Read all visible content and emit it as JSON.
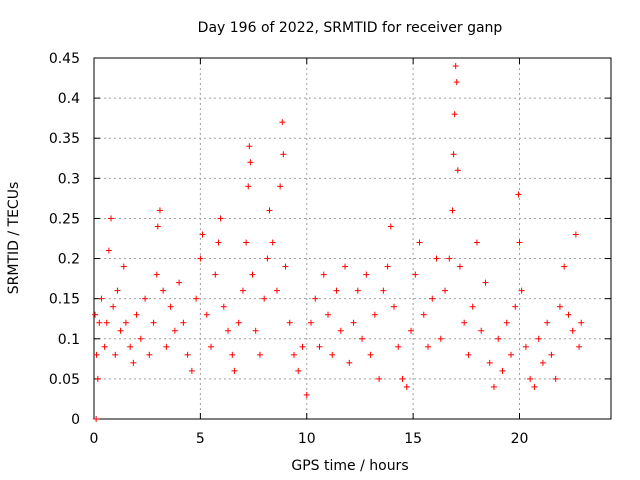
{
  "chart_data": {
    "type": "scatter",
    "title": "Day 196 of 2022, SRMTID for receiver ganp",
    "xlabel": "GPS time / hours",
    "ylabel": "SRMTID / TECUs",
    "xlim": [
      0,
      24.3
    ],
    "ylim": [
      0,
      0.45
    ],
    "xticks": [
      0,
      5,
      10,
      15,
      20
    ],
    "xtick_labels": [
      "0",
      "5",
      "10",
      "15",
      "20"
    ],
    "yticks": [
      0,
      0.05,
      0.1,
      0.15,
      0.2,
      0.25,
      0.3,
      0.35,
      0.4,
      0.45
    ],
    "ytick_labels": [
      "0",
      "0.05",
      "0.1",
      "0.15",
      "0.2",
      "0.25",
      "0.3",
      "0.35",
      "0.4",
      "0.45"
    ],
    "grid": true,
    "marker": "+",
    "color": "#ff0000",
    "series": [
      {
        "name": "SRMTID",
        "points": [
          [
            0.05,
            0.13
          ],
          [
            0.1,
            0.0
          ],
          [
            0.12,
            0.08
          ],
          [
            0.18,
            0.05
          ],
          [
            0.25,
            0.12
          ],
          [
            0.35,
            0.15
          ],
          [
            0.5,
            0.09
          ],
          [
            0.6,
            0.12
          ],
          [
            0.7,
            0.21
          ],
          [
            0.8,
            0.25
          ],
          [
            0.9,
            0.14
          ],
          [
            1.0,
            0.08
          ],
          [
            1.1,
            0.16
          ],
          [
            1.25,
            0.11
          ],
          [
            1.4,
            0.19
          ],
          [
            1.5,
            0.12
          ],
          [
            1.7,
            0.09
          ],
          [
            1.85,
            0.07
          ],
          [
            2.0,
            0.13
          ],
          [
            2.2,
            0.1
          ],
          [
            2.4,
            0.15
          ],
          [
            2.6,
            0.08
          ],
          [
            2.8,
            0.12
          ],
          [
            2.95,
            0.18
          ],
          [
            3.0,
            0.24
          ],
          [
            3.1,
            0.26
          ],
          [
            3.25,
            0.16
          ],
          [
            3.4,
            0.09
          ],
          [
            3.6,
            0.14
          ],
          [
            3.8,
            0.11
          ],
          [
            4.0,
            0.17
          ],
          [
            4.2,
            0.12
          ],
          [
            4.4,
            0.08
          ],
          [
            4.6,
            0.06
          ],
          [
            4.8,
            0.15
          ],
          [
            5.0,
            0.2
          ],
          [
            5.1,
            0.23
          ],
          [
            5.3,
            0.13
          ],
          [
            5.5,
            0.09
          ],
          [
            5.7,
            0.18
          ],
          [
            5.85,
            0.22
          ],
          [
            5.95,
            0.25
          ],
          [
            6.1,
            0.14
          ],
          [
            6.3,
            0.11
          ],
          [
            6.5,
            0.08
          ],
          [
            6.6,
            0.06
          ],
          [
            6.8,
            0.12
          ],
          [
            7.0,
            0.16
          ],
          [
            7.15,
            0.22
          ],
          [
            7.25,
            0.29
          ],
          [
            7.3,
            0.34
          ],
          [
            7.35,
            0.32
          ],
          [
            7.45,
            0.18
          ],
          [
            7.6,
            0.11
          ],
          [
            7.8,
            0.08
          ],
          [
            8.0,
            0.15
          ],
          [
            8.15,
            0.2
          ],
          [
            8.25,
            0.26
          ],
          [
            8.4,
            0.22
          ],
          [
            8.6,
            0.16
          ],
          [
            8.75,
            0.29
          ],
          [
            8.85,
            0.37
          ],
          [
            8.9,
            0.33
          ],
          [
            9.0,
            0.19
          ],
          [
            9.2,
            0.12
          ],
          [
            9.4,
            0.08
          ],
          [
            9.6,
            0.06
          ],
          [
            9.8,
            0.09
          ],
          [
            10.0,
            0.03
          ],
          [
            10.2,
            0.12
          ],
          [
            10.4,
            0.15
          ],
          [
            10.6,
            0.09
          ],
          [
            10.8,
            0.18
          ],
          [
            11.0,
            0.13
          ],
          [
            11.2,
            0.08
          ],
          [
            11.4,
            0.16
          ],
          [
            11.6,
            0.11
          ],
          [
            11.8,
            0.19
          ],
          [
            12.0,
            0.07
          ],
          [
            12.2,
            0.12
          ],
          [
            12.4,
            0.16
          ],
          [
            12.6,
            0.1
          ],
          [
            12.8,
            0.18
          ],
          [
            13.0,
            0.08
          ],
          [
            13.2,
            0.13
          ],
          [
            13.4,
            0.05
          ],
          [
            13.6,
            0.16
          ],
          [
            13.8,
            0.19
          ],
          [
            13.95,
            0.24
          ],
          [
            14.1,
            0.14
          ],
          [
            14.3,
            0.09
          ],
          [
            14.5,
            0.05
          ],
          [
            14.7,
            0.04
          ],
          [
            14.9,
            0.11
          ],
          [
            15.1,
            0.18
          ],
          [
            15.3,
            0.22
          ],
          [
            15.5,
            0.13
          ],
          [
            15.7,
            0.09
          ],
          [
            15.9,
            0.15
          ],
          [
            16.1,
            0.2
          ],
          [
            16.3,
            0.1
          ],
          [
            16.5,
            0.16
          ],
          [
            16.7,
            0.2
          ],
          [
            16.85,
            0.26
          ],
          [
            16.9,
            0.33
          ],
          [
            16.95,
            0.38
          ],
          [
            17.0,
            0.44
          ],
          [
            17.05,
            0.42
          ],
          [
            17.1,
            0.31
          ],
          [
            17.2,
            0.19
          ],
          [
            17.4,
            0.12
          ],
          [
            17.6,
            0.08
          ],
          [
            17.8,
            0.14
          ],
          [
            18.0,
            0.22
          ],
          [
            18.2,
            0.11
          ],
          [
            18.4,
            0.17
          ],
          [
            18.6,
            0.07
          ],
          [
            18.8,
            0.04
          ],
          [
            19.0,
            0.1
          ],
          [
            19.2,
            0.06
          ],
          [
            19.4,
            0.12
          ],
          [
            19.6,
            0.08
          ],
          [
            19.8,
            0.14
          ],
          [
            19.95,
            0.28
          ],
          [
            20.0,
            0.22
          ],
          [
            20.1,
            0.16
          ],
          [
            20.3,
            0.09
          ],
          [
            20.5,
            0.05
          ],
          [
            20.7,
            0.04
          ],
          [
            20.9,
            0.1
          ],
          [
            21.1,
            0.07
          ],
          [
            21.3,
            0.12
          ],
          [
            21.5,
            0.08
          ],
          [
            21.7,
            0.05
          ],
          [
            21.9,
            0.14
          ],
          [
            22.1,
            0.19
          ],
          [
            22.3,
            0.13
          ],
          [
            22.5,
            0.11
          ],
          [
            22.65,
            0.23
          ],
          [
            22.8,
            0.09
          ],
          [
            22.9,
            0.12
          ]
        ]
      }
    ]
  }
}
